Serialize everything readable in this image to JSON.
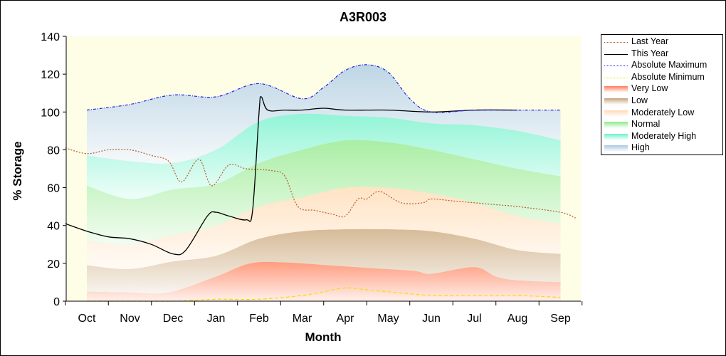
{
  "chart_data": {
    "type": "area",
    "title": "A3R003",
    "xlabel": "Month",
    "ylabel": "% Storage",
    "ylim": [
      0,
      140
    ],
    "yticks": [
      0,
      20,
      40,
      60,
      80,
      100,
      120,
      140
    ],
    "categories": [
      "Oct",
      "Nov",
      "Dec",
      "Jan",
      "Feb",
      "Mar",
      "Apr",
      "May",
      "Jun",
      "Jul",
      "Aug",
      "Sep"
    ],
    "x_range_months": [
      -0.5,
      11.5
    ],
    "grid": false,
    "legend_position": "right",
    "bands": [
      {
        "name": "Very Low",
        "color": "#ff7c5c",
        "lower": {
          "x": [
            0,
            11
          ],
          "y": [
            0,
            0
          ]
        },
        "upper": {
          "x": [
            0,
            1,
            1.9,
            3,
            3.8,
            4.6,
            5.6,
            6.6,
            7.6,
            8,
            9,
            9.5,
            10,
            11
          ],
          "y": [
            5,
            4.5,
            4.5,
            13,
            20,
            20.5,
            19,
            17.5,
            16,
            14.5,
            18,
            13,
            11,
            10
          ]
        }
      },
      {
        "name": "Low",
        "color": "#c8a47e",
        "lower": {
          "x": [
            0,
            1,
            1.9,
            3,
            3.8,
            4.6,
            5.6,
            6.6,
            7.6,
            8,
            9,
            9.5,
            10,
            11
          ],
          "y": [
            5,
            4.5,
            4.5,
            13,
            20,
            20.5,
            19,
            17.5,
            16,
            14.5,
            18,
            13,
            11,
            10
          ]
        },
        "upper": {
          "x": [
            0,
            1,
            2,
            3,
            4,
            5,
            6,
            7,
            8,
            9,
            10,
            11
          ],
          "y": [
            19,
            17,
            21,
            24,
            33,
            37,
            38,
            38,
            37,
            33,
            27,
            25
          ]
        }
      },
      {
        "name": "Moderately Low",
        "color": "#ffd9b8",
        "lower": {
          "x": [
            0,
            1,
            2,
            3,
            4,
            5,
            6,
            7,
            8,
            9,
            10,
            11
          ],
          "y": [
            19,
            17,
            21,
            24,
            33,
            37,
            38,
            38,
            37,
            33,
            27,
            25
          ]
        },
        "upper": {
          "x": [
            0,
            1,
            2,
            3,
            4,
            5,
            6,
            7,
            8,
            9,
            10,
            11
          ],
          "y": [
            32,
            30,
            35,
            40,
            50,
            55,
            60,
            60,
            57,
            52,
            45,
            41
          ]
        }
      },
      {
        "name": "Normal",
        "color": "#8ee88e",
        "lower": {
          "x": [
            0,
            1,
            2,
            3,
            4,
            5,
            6,
            7,
            8,
            9,
            10,
            11
          ],
          "y": [
            32,
            30,
            35,
            40,
            50,
            55,
            60,
            60,
            57,
            52,
            45,
            41
          ]
        },
        "upper": {
          "x": [
            0,
            1,
            2,
            3,
            4,
            5,
            6,
            7,
            8,
            9,
            10,
            11
          ],
          "y": [
            61,
            54,
            59,
            62,
            73,
            80,
            85,
            84,
            80,
            75,
            70,
            66
          ]
        }
      },
      {
        "name": "Moderately High",
        "color": "#6cf2d0",
        "lower": {
          "x": [
            0,
            1,
            2,
            3,
            4,
            5,
            6,
            7,
            8,
            9,
            10,
            11
          ],
          "y": [
            61,
            54,
            59,
            62,
            73,
            80,
            85,
            84,
            80,
            75,
            70,
            66
          ]
        },
        "upper": {
          "x": [
            0,
            1,
            2,
            3,
            4,
            5,
            6,
            7,
            8,
            9,
            10,
            11
          ],
          "y": [
            77,
            74,
            73,
            80,
            95,
            99,
            98,
            97,
            94,
            93,
            90,
            85
          ]
        }
      },
      {
        "name": "High",
        "color": "#a8c8e4",
        "lower": {
          "x": [
            0,
            1,
            2,
            3,
            4,
            5,
            6,
            7,
            8,
            9,
            10,
            11
          ],
          "y": [
            77,
            74,
            73,
            80,
            95,
            99,
            98,
            97,
            94,
            93,
            90,
            85
          ]
        },
        "upper": {
          "x": [
            0,
            1,
            2,
            3,
            4,
            5,
            5.5,
            6,
            6.5,
            7,
            7.5,
            8,
            9,
            10,
            11
          ],
          "y": [
            101,
            104,
            109,
            108,
            115,
            107,
            113,
            122,
            125,
            121,
            107,
            100,
            101,
            101,
            101
          ]
        }
      }
    ],
    "series": [
      {
        "name": "Last Year",
        "color": "#b85c2a",
        "style": "dotted",
        "x": [
          -0.5,
          0,
          0.5,
          1,
          1.5,
          1.9,
          2.2,
          2.6,
          2.9,
          3.3,
          3.7,
          4.3,
          4.6,
          4.9,
          5.3,
          5.7,
          6,
          6.3,
          6.5,
          6.8,
          7.3,
          7.8,
          8,
          8.5,
          9,
          9.5,
          10,
          11,
          11.35
        ],
        "y": [
          81,
          78,
          80,
          80,
          77,
          74,
          63,
          75,
          61,
          72,
          70,
          69,
          66,
          50,
          48,
          46,
          45,
          54,
          54,
          58,
          52,
          52,
          54,
          53,
          52,
          51,
          50,
          47,
          44
        ]
      },
      {
        "name": "This Year",
        "color": "#000000",
        "style": "solid",
        "x": [
          -0.5,
          0,
          0.5,
          1,
          1.5,
          2,
          2.3,
          2.8,
          3,
          3.3,
          3.7,
          3.85,
          4,
          4.05,
          4.2,
          4.6,
          5,
          5.5,
          6,
          7,
          8,
          9,
          10
        ],
        "y": [
          41,
          37,
          34,
          33,
          30,
          25,
          27,
          45,
          47,
          45,
          43,
          48,
          100,
          108,
          101,
          101,
          101,
          102,
          101,
          101,
          100,
          101,
          101
        ]
      },
      {
        "name": "Absolute Maximum",
        "color": "#2020e0",
        "style": "dashdot",
        "x": [
          0,
          1,
          2,
          3,
          4,
          5,
          5.5,
          6,
          6.5,
          7,
          7.5,
          8,
          9,
          10,
          11
        ],
        "y": [
          101,
          104,
          109,
          108,
          115,
          107,
          113,
          122,
          125,
          121,
          107,
          100,
          101,
          101,
          101
        ]
      },
      {
        "name": "Absolute Minimum",
        "color": "#f0e000",
        "style": "dashed",
        "x": [
          0,
          1,
          2,
          3,
          4,
          5,
          5.5,
          6,
          6.5,
          7,
          8,
          9,
          10,
          11
        ],
        "y": [
          0,
          0,
          0,
          1,
          1,
          3,
          5,
          7,
          6,
          5,
          3,
          3,
          3,
          2
        ]
      }
    ],
    "legend": [
      {
        "label": "Last Year",
        "kind": "line",
        "color": "#b85c2a",
        "style": "dotted"
      },
      {
        "label": "This Year",
        "kind": "line",
        "color": "#000000",
        "style": "solid"
      },
      {
        "label": "Absolute Maximum",
        "kind": "line",
        "color": "#2020e0",
        "style": "dashdot"
      },
      {
        "label": "Absolute Minimum",
        "kind": "line",
        "color": "#f0e000",
        "style": "dashed"
      },
      {
        "label": "Very Low",
        "kind": "area",
        "color": "#ff7c5c"
      },
      {
        "label": "Low",
        "kind": "area",
        "color": "#c8a47e"
      },
      {
        "label": "Moderately Low",
        "kind": "area",
        "color": "#ffd9b8"
      },
      {
        "label": "Normal",
        "kind": "area",
        "color": "#8ee88e"
      },
      {
        "label": "Moderately High",
        "kind": "area",
        "color": "#6cf2d0"
      },
      {
        "label": "High",
        "kind": "area",
        "color": "#a8c8e4"
      }
    ],
    "plot_background": "#fefde6"
  }
}
